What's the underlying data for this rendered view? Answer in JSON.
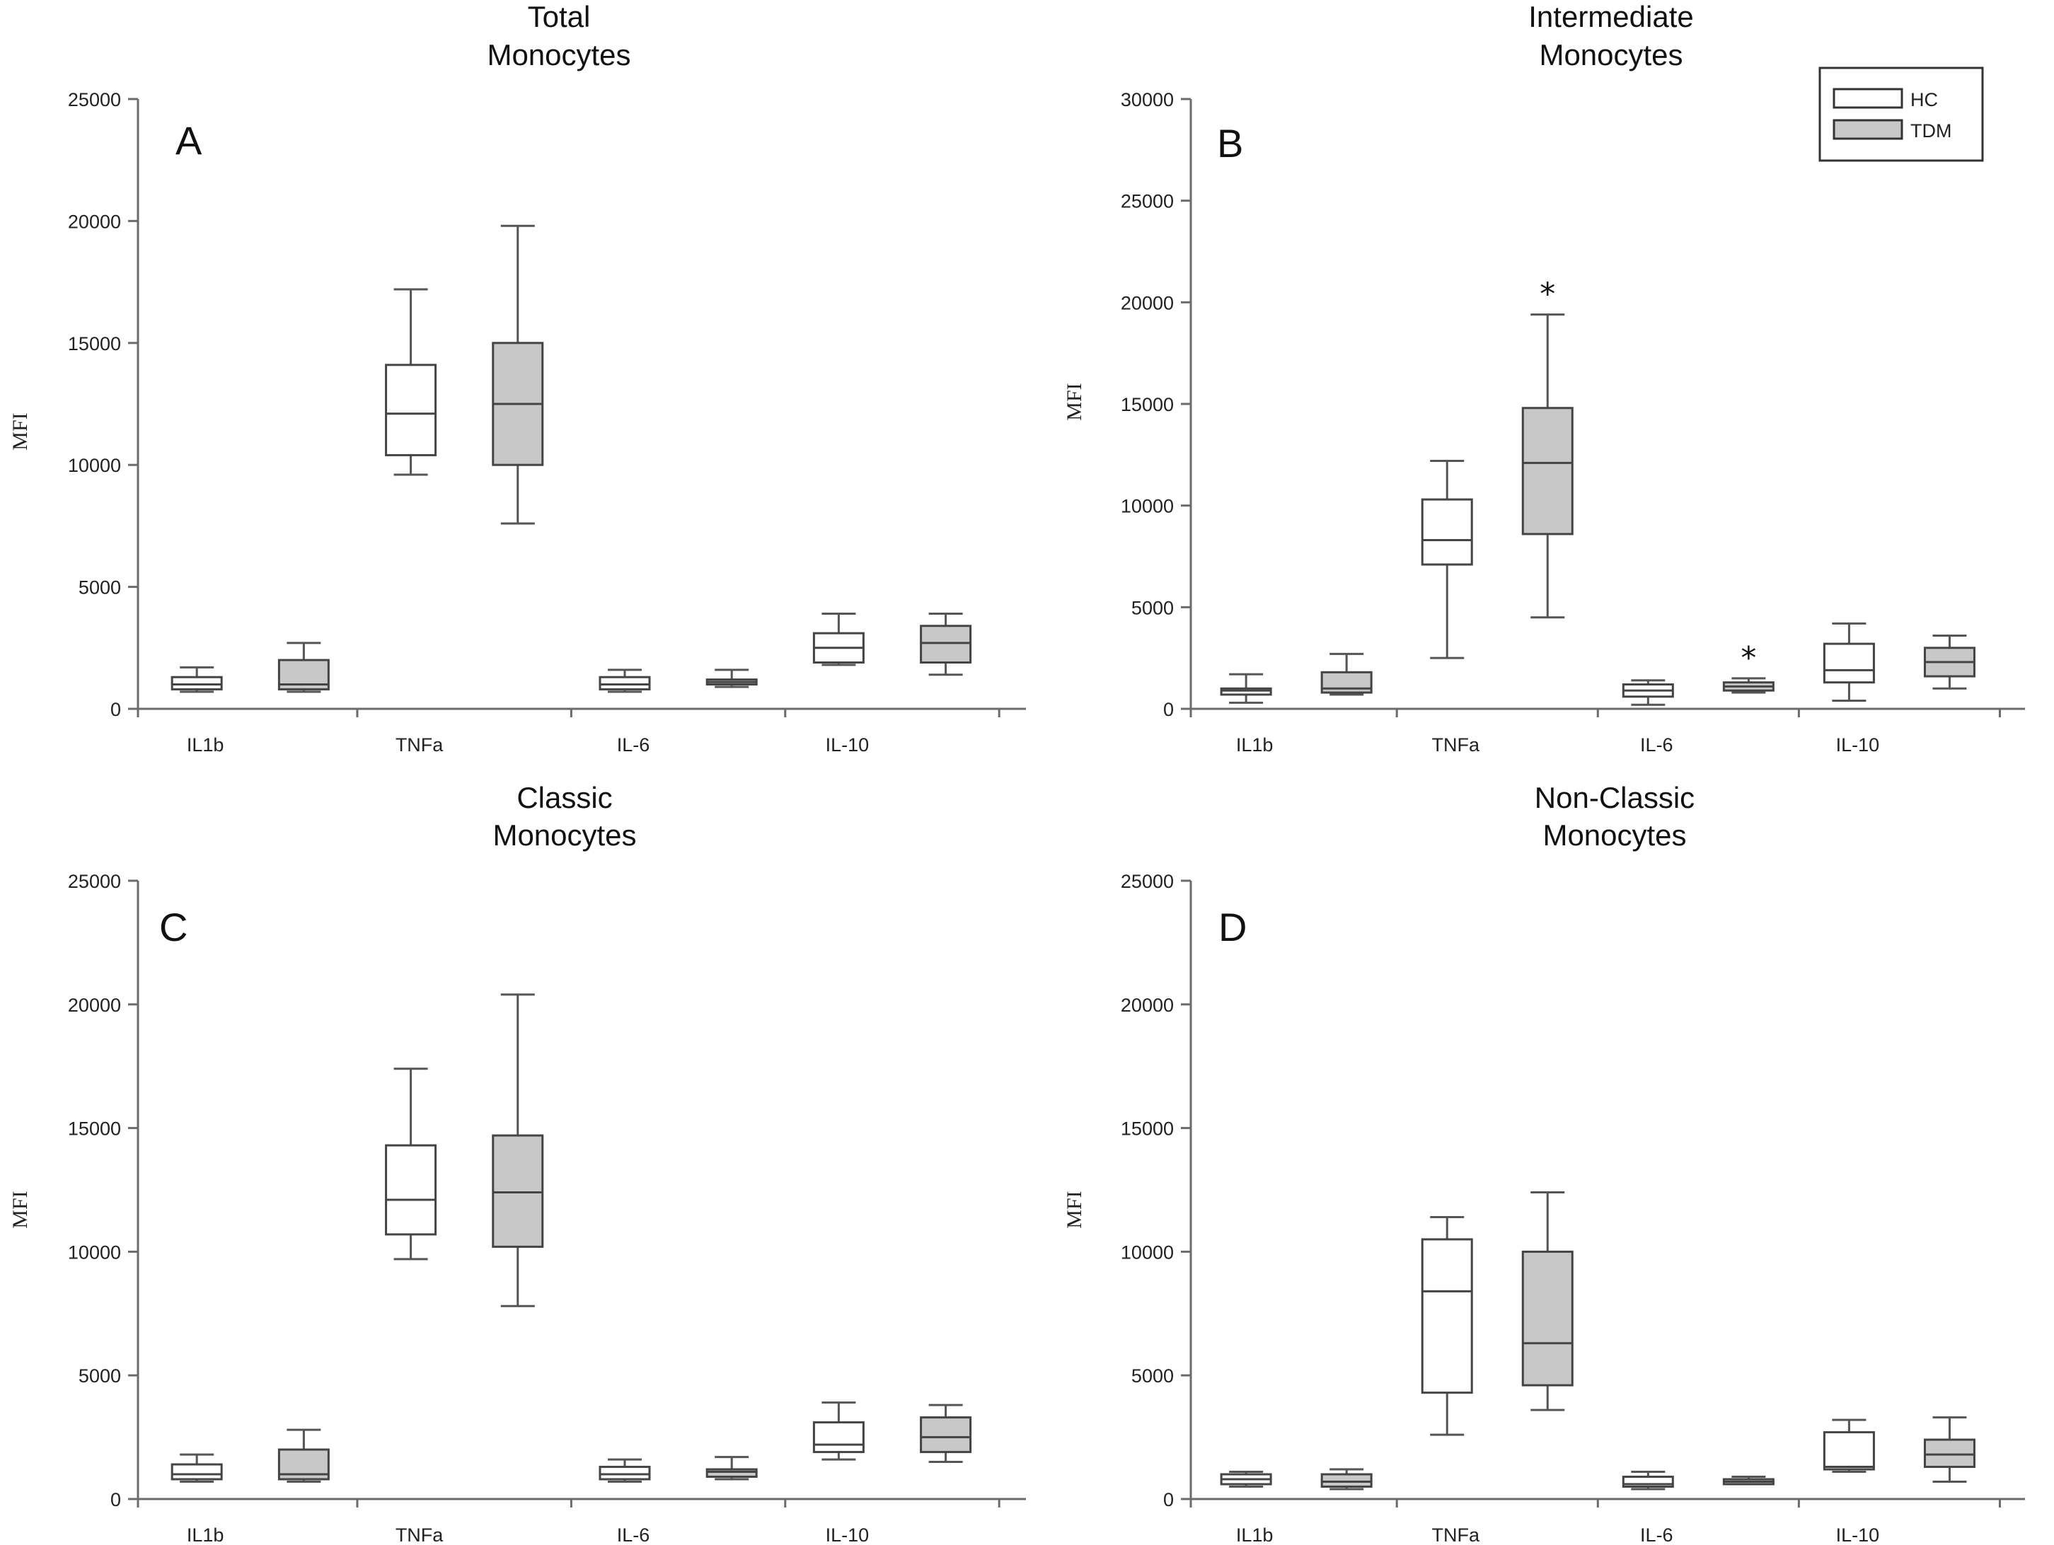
{
  "legend": {
    "entries": [
      {
        "label": "HC",
        "color": "#ffffff"
      },
      {
        "label": "TDM",
        "color": "#c8c8c8"
      }
    ]
  },
  "ylabel": "MFI",
  "chart_data": [
    {
      "type": "box",
      "panel": "A",
      "title": [
        "Total",
        "Monocytes"
      ],
      "ylabel": "MFI",
      "ylim": [
        0,
        25000
      ],
      "yticks": [
        0,
        5000,
        10000,
        15000,
        20000,
        25000
      ],
      "categories": [
        "IL1b",
        "TNFa",
        "IL-6",
        "IL-10"
      ],
      "series": [
        {
          "name": "HC",
          "values": [
            {
              "min": 700,
              "q1": 800,
              "median": 1000,
              "q3": 1300,
              "max": 1700
            },
            {
              "min": 9600,
              "q1": 10400,
              "median": 12100,
              "q3": 14100,
              "max": 17200
            },
            {
              "min": 700,
              "q1": 800,
              "median": 1000,
              "q3": 1300,
              "max": 1600
            },
            {
              "min": 1800,
              "q1": 1900,
              "median": 2500,
              "q3": 3100,
              "max": 3900
            }
          ]
        },
        {
          "name": "TDM",
          "values": [
            {
              "min": 700,
              "q1": 800,
              "median": 1000,
              "q3": 2000,
              "max": 2700
            },
            {
              "min": 7600,
              "q1": 10000,
              "median": 12500,
              "q3": 15000,
              "max": 19800
            },
            {
              "min": 900,
              "q1": 1000,
              "median": 1100,
              "q3": 1200,
              "max": 1600
            },
            {
              "min": 1400,
              "q1": 1900,
              "median": 2700,
              "q3": 3400,
              "max": 3900
            }
          ]
        }
      ],
      "annotations": []
    },
    {
      "type": "box",
      "panel": "B",
      "title": [
        "Intermediate",
        "Monocytes"
      ],
      "ylabel": "MFI",
      "ylim": [
        0,
        30000
      ],
      "yticks": [
        0,
        5000,
        10000,
        15000,
        20000,
        25000,
        30000
      ],
      "categories": [
        "IL1b",
        "TNFa",
        "IL-6",
        "IL-10"
      ],
      "series": [
        {
          "name": "HC",
          "values": [
            {
              "min": 300,
              "q1": 700,
              "median": 900,
              "q3": 1000,
              "max": 1700
            },
            {
              "min": 2500,
              "q1": 7100,
              "median": 8300,
              "q3": 10300,
              "max": 12200
            },
            {
              "min": 200,
              "q1": 600,
              "median": 900,
              "q3": 1200,
              "max": 1400
            },
            {
              "min": 400,
              "q1": 1300,
              "median": 1900,
              "q3": 3200,
              "max": 4200
            }
          ]
        },
        {
          "name": "TDM",
          "values": [
            {
              "min": 700,
              "q1": 800,
              "median": 1000,
              "q3": 1800,
              "max": 2700
            },
            {
              "min": 4500,
              "q1": 8600,
              "median": 12100,
              "q3": 14800,
              "max": 19400
            },
            {
              "min": 800,
              "q1": 900,
              "median": 1100,
              "q3": 1300,
              "max": 1500
            },
            {
              "min": 1000,
              "q1": 1600,
              "median": 2300,
              "q3": 3000,
              "max": 3600
            }
          ]
        }
      ],
      "annotations": [
        {
          "text": "*",
          "category": "TNFa",
          "series": "TDM"
        },
        {
          "text": "*",
          "category": "IL-6",
          "series": "TDM"
        }
      ]
    },
    {
      "type": "box",
      "panel": "C",
      "title": [
        "Classic",
        "Monocytes"
      ],
      "ylabel": "MFI",
      "ylim": [
        0,
        25000
      ],
      "yticks": [
        0,
        5000,
        10000,
        15000,
        20000,
        25000
      ],
      "categories": [
        "IL1b",
        "TNFa",
        "IL-6",
        "IL-10"
      ],
      "series": [
        {
          "name": "HC",
          "values": [
            {
              "min": 700,
              "q1": 800,
              "median": 1000,
              "q3": 1400,
              "max": 1800
            },
            {
              "min": 9700,
              "q1": 10700,
              "median": 12100,
              "q3": 14300,
              "max": 17400
            },
            {
              "min": 700,
              "q1": 800,
              "median": 1000,
              "q3": 1300,
              "max": 1600
            },
            {
              "min": 1600,
              "q1": 1900,
              "median": 2200,
              "q3": 3100,
              "max": 3900
            }
          ]
        },
        {
          "name": "TDM",
          "values": [
            {
              "min": 700,
              "q1": 800,
              "median": 1000,
              "q3": 2000,
              "max": 2800
            },
            {
              "min": 7800,
              "q1": 10200,
              "median": 12400,
              "q3": 14700,
              "max": 20400
            },
            {
              "min": 800,
              "q1": 900,
              "median": 1100,
              "q3": 1200,
              "max": 1700
            },
            {
              "min": 1500,
              "q1": 1900,
              "median": 2500,
              "q3": 3300,
              "max": 3800
            }
          ]
        }
      ],
      "annotations": []
    },
    {
      "type": "box",
      "panel": "D",
      "title": [
        "Non-Classic",
        "Monocytes"
      ],
      "ylabel": "MFI",
      "ylim": [
        0,
        25000
      ],
      "yticks": [
        0,
        5000,
        10000,
        15000,
        20000,
        25000
      ],
      "categories": [
        "IL1b",
        "TNFa",
        "IL-6",
        "IL-10"
      ],
      "series": [
        {
          "name": "HC",
          "values": [
            {
              "min": 500,
              "q1": 600,
              "median": 800,
              "q3": 1000,
              "max": 1100
            },
            {
              "min": 2600,
              "q1": 4300,
              "median": 8400,
              "q3": 10500,
              "max": 11400
            },
            {
              "min": 400,
              "q1": 500,
              "median": 600,
              "q3": 900,
              "max": 1100
            },
            {
              "min": 1100,
              "q1": 1200,
              "median": 1300,
              "q3": 2700,
              "max": 3200
            }
          ]
        },
        {
          "name": "TDM",
          "values": [
            {
              "min": 400,
              "q1": 500,
              "median": 700,
              "q3": 1000,
              "max": 1200
            },
            {
              "min": 3600,
              "q1": 4600,
              "median": 6300,
              "q3": 10000,
              "max": 12400
            },
            {
              "min": 600,
              "q1": 600,
              "median": 700,
              "q3": 800,
              "max": 900
            },
            {
              "min": 700,
              "q1": 1300,
              "median": 1800,
              "q3": 2400,
              "max": 3300
            }
          ]
        }
      ],
      "annotations": []
    }
  ]
}
